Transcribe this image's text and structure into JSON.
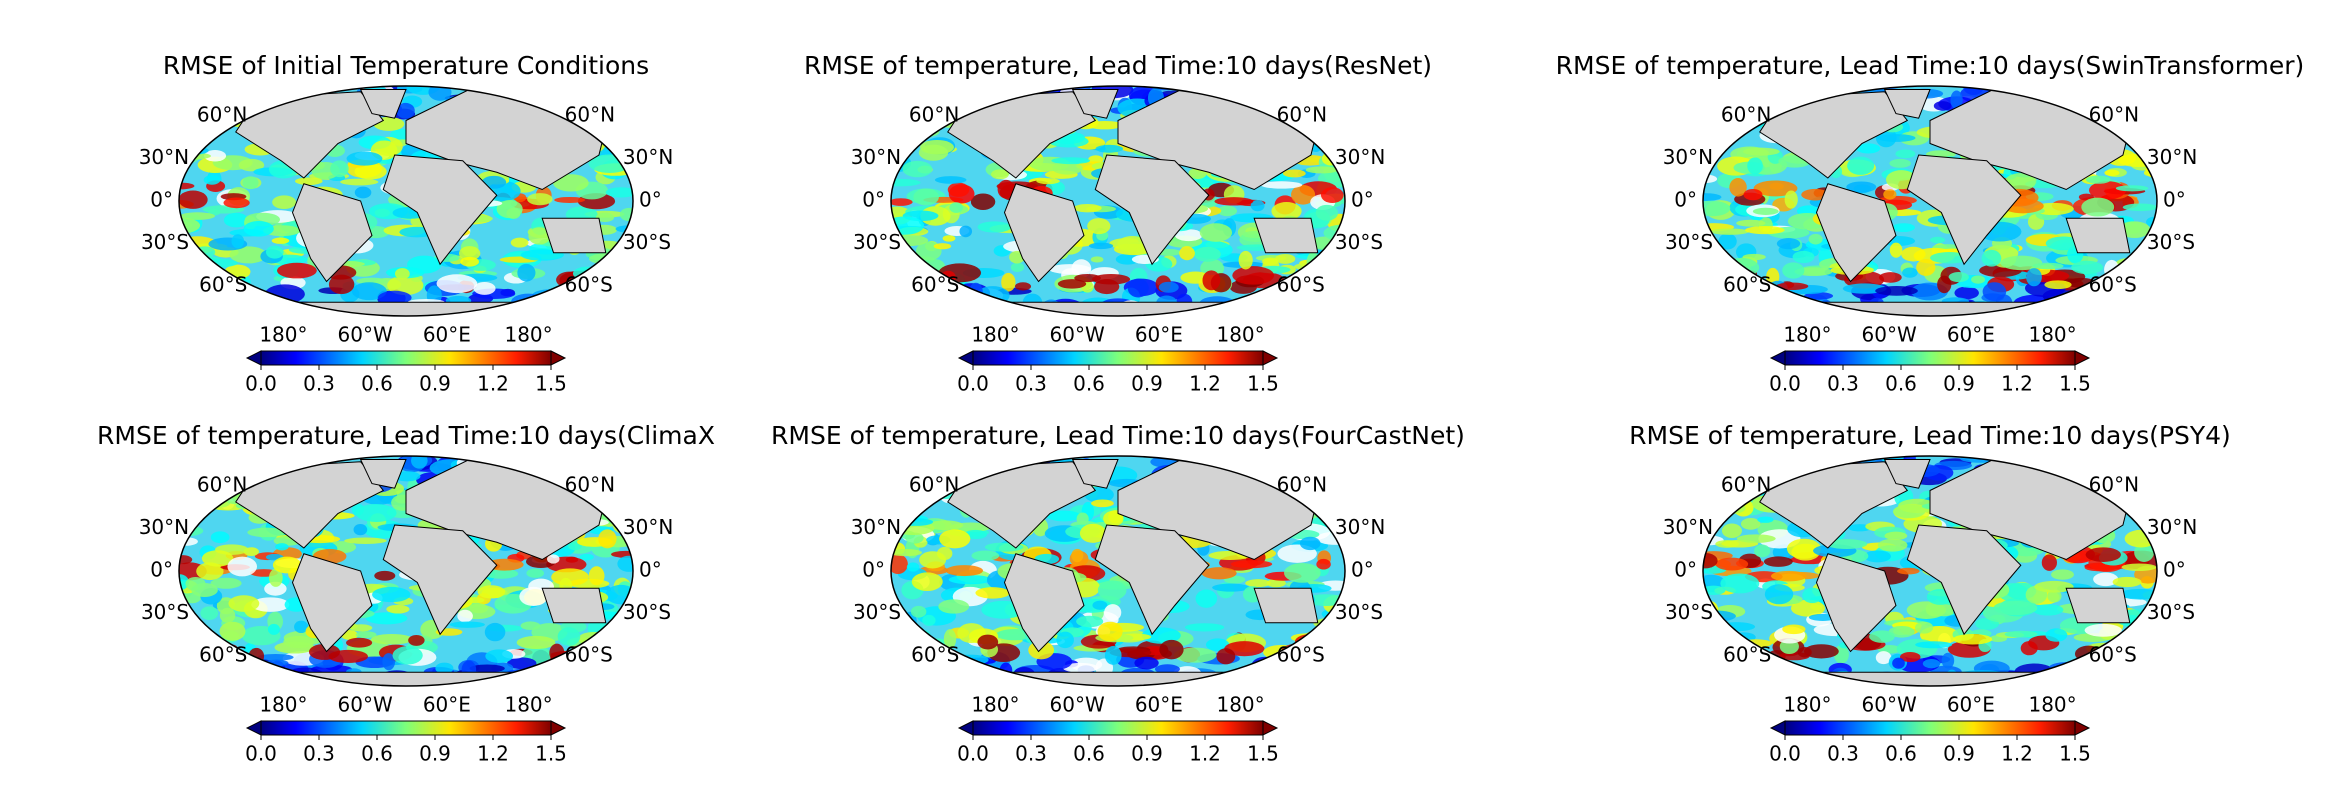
{
  "panels": [
    {
      "title": "RMSE of Initial Temperature Conditions"
    },
    {
      "title": "RMSE of temperature, Lead Time:10 days(ResNet)"
    },
    {
      "title": "RMSE of temperature, Lead Time:10 days(SwinTransformer)"
    },
    {
      "title": "RMSE of temperature, Lead Time:10 days(ClimaX"
    },
    {
      "title": "RMSE of temperature, Lead Time:10 days(FourCastNet)"
    },
    {
      "title": "RMSE of temperature, Lead Time:10 days(PSY4)"
    }
  ],
  "lat_labels": [
    "60°N",
    "30°N",
    "0°",
    "30°S",
    "60°S"
  ],
  "lon_labels": [
    "180°",
    "60°W",
    "60°E",
    "180°"
  ],
  "colorbar": {
    "clim": [
      0,
      1.5
    ],
    "ticks": [
      {
        "value": 0,
        "label": "0.0"
      },
      0.3,
      0.6,
      0.9,
      1.2,
      1.5
    ]
  }
}
